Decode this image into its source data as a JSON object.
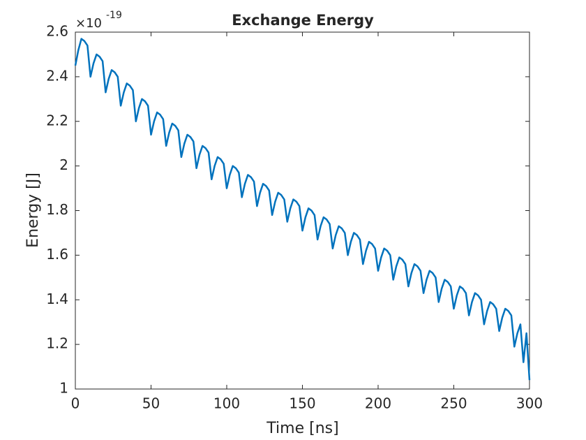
{
  "chart_data": {
    "type": "line",
    "title": "Exchange Energy",
    "x_label": "Time [ns]",
    "y_label": "Energy [J]",
    "y_multiplier": "×10",
    "y_multiplier_exponent": "-19",
    "xlim": [
      0,
      300
    ],
    "xticks": [
      0,
      50,
      100,
      150,
      200,
      250,
      300
    ],
    "ylim": [
      1,
      2.6
    ],
    "yticks": [
      1,
      1.2,
      1.4,
      1.6,
      1.8,
      2,
      2.2,
      2.4,
      2.6
    ],
    "grid": false,
    "series": [
      {
        "name": "Exchange Energy",
        "color": "#0072bd",
        "x": [
          0,
          2,
          4,
          6,
          8,
          10,
          12,
          14,
          16,
          18,
          20,
          22,
          24,
          26,
          28,
          30,
          32,
          34,
          36,
          38,
          40,
          42,
          44,
          46,
          48,
          50,
          52,
          54,
          56,
          58,
          60,
          62,
          64,
          66,
          68,
          70,
          72,
          74,
          76,
          78,
          80,
          82,
          84,
          86,
          88,
          90,
          92,
          94,
          96,
          98,
          100,
          102,
          104,
          106,
          108,
          110,
          112,
          114,
          116,
          118,
          120,
          122,
          124,
          126,
          128,
          130,
          132,
          134,
          136,
          138,
          140,
          142,
          144,
          146,
          148,
          150,
          152,
          154,
          156,
          158,
          160,
          162,
          164,
          166,
          168,
          170,
          172,
          174,
          176,
          178,
          180,
          182,
          184,
          186,
          188,
          190,
          192,
          194,
          196,
          198,
          200,
          202,
          204,
          206,
          208,
          210,
          212,
          214,
          216,
          218,
          220,
          222,
          224,
          226,
          228,
          230,
          232,
          234,
          236,
          238,
          240,
          242,
          244,
          246,
          248,
          250,
          252,
          254,
          256,
          258,
          260,
          262,
          264,
          266,
          268,
          270,
          272,
          274,
          276,
          278,
          280,
          282,
          284,
          286,
          288,
          290,
          292,
          294,
          296,
          298,
          300
        ],
        "values": [
          2.45,
          2.52,
          2.57,
          2.56,
          2.54,
          2.4,
          2.46,
          2.5,
          2.49,
          2.47,
          2.33,
          2.39,
          2.43,
          2.42,
          2.4,
          2.27,
          2.33,
          2.37,
          2.36,
          2.34,
          2.2,
          2.26,
          2.3,
          2.29,
          2.27,
          2.14,
          2.2,
          2.24,
          2.23,
          2.21,
          2.09,
          2.15,
          2.19,
          2.18,
          2.16,
          2.04,
          2.1,
          2.14,
          2.13,
          2.11,
          1.99,
          2.05,
          2.09,
          2.08,
          2.06,
          1.94,
          2.0,
          2.04,
          2.03,
          2.01,
          1.9,
          1.96,
          2.0,
          1.99,
          1.97,
          1.86,
          1.92,
          1.96,
          1.95,
          1.93,
          1.82,
          1.88,
          1.92,
          1.91,
          1.89,
          1.78,
          1.84,
          1.88,
          1.87,
          1.85,
          1.75,
          1.81,
          1.85,
          1.84,
          1.82,
          1.71,
          1.77,
          1.81,
          1.8,
          1.78,
          1.67,
          1.73,
          1.77,
          1.76,
          1.74,
          1.63,
          1.69,
          1.73,
          1.72,
          1.7,
          1.6,
          1.66,
          1.7,
          1.69,
          1.67,
          1.56,
          1.62,
          1.66,
          1.65,
          1.63,
          1.53,
          1.59,
          1.63,
          1.62,
          1.6,
          1.49,
          1.55,
          1.59,
          1.58,
          1.56,
          1.46,
          1.52,
          1.56,
          1.55,
          1.53,
          1.43,
          1.49,
          1.53,
          1.52,
          1.5,
          1.39,
          1.45,
          1.49,
          1.48,
          1.46,
          1.36,
          1.42,
          1.46,
          1.45,
          1.43,
          1.33,
          1.39,
          1.43,
          1.42,
          1.4,
          1.29,
          1.35,
          1.39,
          1.38,
          1.36,
          1.26,
          1.32,
          1.36,
          1.35,
          1.33,
          1.19,
          1.25,
          1.29,
          1.12,
          1.25,
          1.04
        ]
      }
    ]
  }
}
